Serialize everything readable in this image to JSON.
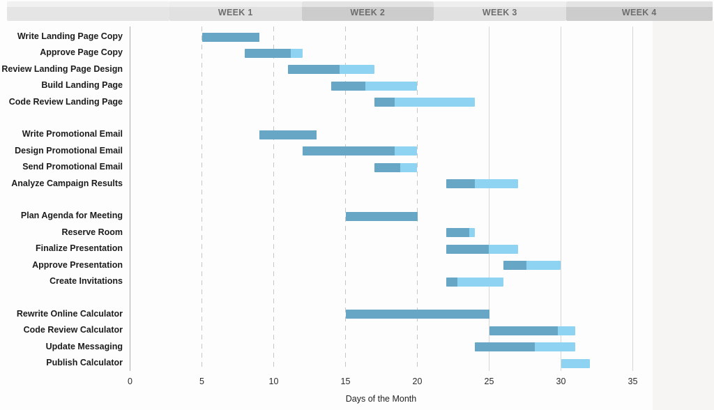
{
  "header": {
    "weeks": [
      {
        "label": "WEEK 1"
      },
      {
        "label": "WEEK 2"
      },
      {
        "label": "WEEK 3"
      },
      {
        "label": "WEEK 4"
      }
    ]
  },
  "chart_data": {
    "type": "bar",
    "subtype": "gantt",
    "title": "",
    "xlabel": "Days of the Month",
    "xlim": [
      0,
      35
    ],
    "x_ticks": [
      0,
      5,
      10,
      15,
      20,
      25,
      30,
      35
    ],
    "dashed_gridline_days": [
      5,
      10,
      15,
      20
    ],
    "solid_gridline_days": [
      25,
      30,
      35
    ],
    "legend": "none",
    "colors": {
      "bar_total": "#8ed3f1",
      "bar_complete": "#68a6c6",
      "week_band_light": "#e1e1e1",
      "week_band_dark": "#cccccc",
      "week_band_spacer": "#e5e5e5"
    },
    "groups": [
      {
        "tasks": [
          {
            "label": "Write Landing Page Copy",
            "start": 5,
            "end": 9,
            "pct_complete": 100
          },
          {
            "label": "Approve Page Copy",
            "start": 8,
            "end": 12,
            "pct_complete": 80
          },
          {
            "label": "Review Landing Page Design",
            "start": 11,
            "end": 17,
            "pct_complete": 60
          },
          {
            "label": "Build Landing Page",
            "start": 14,
            "end": 20,
            "pct_complete": 40
          },
          {
            "label": "Code Review Landing Page",
            "start": 17,
            "end": 24,
            "pct_complete": 20
          }
        ]
      },
      {
        "tasks": [
          {
            "label": "Write Promotional Email",
            "start": 9,
            "end": 13,
            "pct_complete": 100
          },
          {
            "label": "Design Promotional Email",
            "start": 12,
            "end": 20,
            "pct_complete": 80
          },
          {
            "label": "Send Promotional Email",
            "start": 17,
            "end": 20,
            "pct_complete": 60
          },
          {
            "label": "Analyze Campaign Results",
            "start": 22,
            "end": 27,
            "pct_complete": 40
          }
        ]
      },
      {
        "tasks": [
          {
            "label": "Plan Agenda for Meeting",
            "start": 15,
            "end": 20,
            "pct_complete": 100
          },
          {
            "label": "Reserve Room",
            "start": 22,
            "end": 24,
            "pct_complete": 80
          },
          {
            "label": "Finalize Presentation",
            "start": 22,
            "end": 27,
            "pct_complete": 60
          },
          {
            "label": "Approve Presentation",
            "start": 26,
            "end": 30,
            "pct_complete": 40
          },
          {
            "label": "Create Invitations",
            "start": 22,
            "end": 26,
            "pct_complete": 20
          }
        ]
      },
      {
        "tasks": [
          {
            "label": "Rewrite Online Calculator",
            "start": 15,
            "end": 25,
            "pct_complete": 100
          },
          {
            "label": "Code Review Calculator",
            "start": 25,
            "end": 31,
            "pct_complete": 80
          },
          {
            "label": "Update Messaging",
            "start": 24,
            "end": 31,
            "pct_complete": 60
          },
          {
            "label": "Publish Calculator",
            "start": 30,
            "end": 32,
            "pct_complete": 0
          }
        ]
      }
    ]
  }
}
